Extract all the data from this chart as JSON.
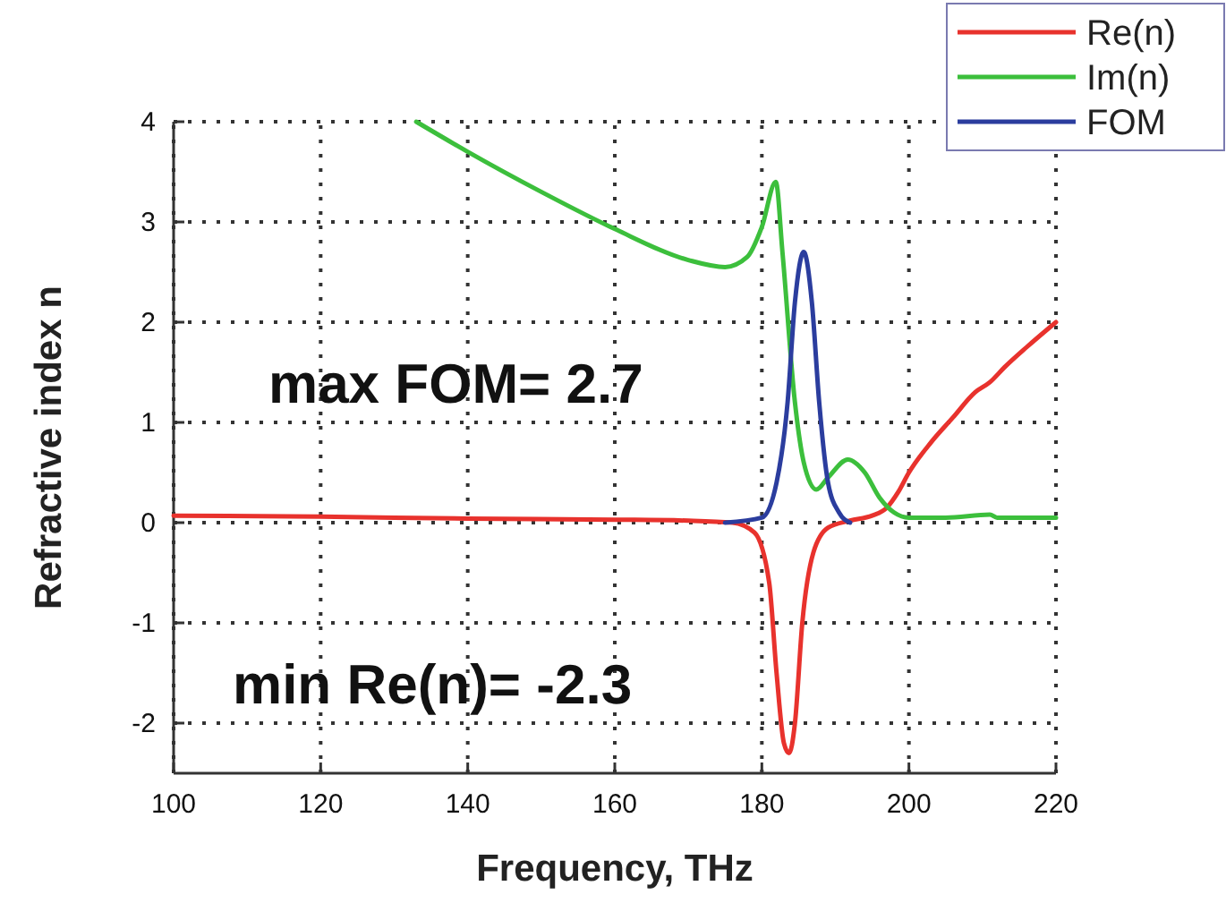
{
  "chart_data": {
    "type": "line",
    "xlabel": "Frequency, THz",
    "ylabel": "Refractive index n",
    "xlim": [
      100,
      220
    ],
    "ylim": [
      -2.5,
      4
    ],
    "xticks": [
      100,
      120,
      140,
      160,
      180,
      200,
      220
    ],
    "yticks": [
      -2,
      -1,
      0,
      1,
      2,
      3,
      4
    ],
    "grid": true,
    "legend": "top right",
    "line_style": "solid",
    "marker": "none",
    "annotations": [
      "max FOM= 2.7",
      "min Re(n)= -2.3"
    ],
    "series": [
      {
        "name": "Re(n)",
        "color": "#e8322d",
        "x": [
          100,
          120,
          140,
          160,
          170,
          176,
          179,
          181,
          182,
          183,
          183.7,
          184.5,
          185.5,
          187,
          189,
          192,
          195,
          197,
          198.5,
          200,
          203,
          206,
          209,
          211,
          213,
          216,
          220
        ],
        "values": [
          0.07,
          0.06,
          0.04,
          0.03,
          0.02,
          0,
          -0.1,
          -0.6,
          -1.5,
          -2.2,
          -2.3,
          -2,
          -1,
          -0.3,
          -0.05,
          0.02,
          0.07,
          0.15,
          0.3,
          0.5,
          0.8,
          1.05,
          1.3,
          1.4,
          1.55,
          1.75,
          2
        ]
      },
      {
        "name": "Im(n)",
        "color": "#3cbf3c",
        "x": [
          133,
          140,
          150,
          160,
          170,
          175,
          178,
          180,
          181.9,
          182.8,
          184.5,
          185.7,
          187.4,
          189,
          191.7,
          194,
          196,
          198,
          200,
          205,
          211,
          212,
          220
        ],
        "values": [
          4,
          3.7,
          3.3,
          2.93,
          2.62,
          2.55,
          2.65,
          2.95,
          3.4,
          2.7,
          1.2,
          0.6,
          0.33,
          0.45,
          0.63,
          0.5,
          0.25,
          0.1,
          0.05,
          0.05,
          0.08,
          0.05,
          0.05
        ]
      },
      {
        "name": "FOM",
        "color": "#2b3d9e",
        "x": [
          175,
          180,
          182,
          183.5,
          184.5,
          185.7,
          186.8,
          187.8,
          189,
          190.5,
          192
        ],
        "values": [
          0,
          0.05,
          0.4,
          1.2,
          2.2,
          2.7,
          2.2,
          1.2,
          0.4,
          0.1,
          0
        ]
      }
    ]
  }
}
